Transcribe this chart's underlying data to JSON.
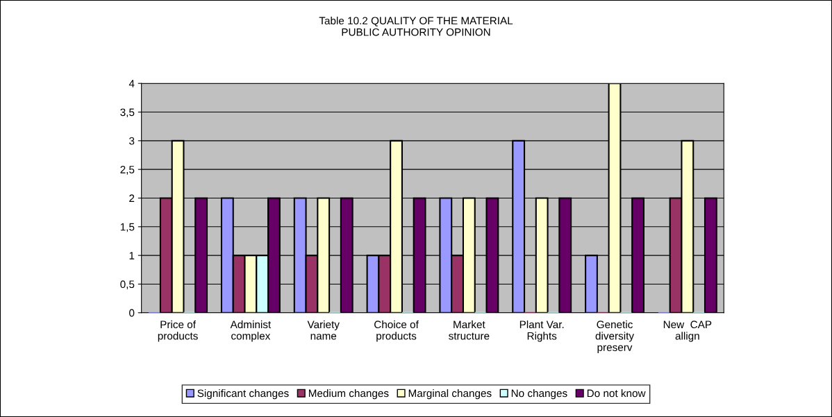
{
  "chart_data": {
    "type": "bar",
    "title": "Table 10.2 QUALITY OF THE MATERIAL\nPUBLIC AUTHORITY OPINION",
    "categories": [
      "Price of\nproducts",
      "Administ\ncomplex",
      "Variety\nname",
      "Choice of\nproducts",
      "Market\nstructure",
      "Plant Var.\nRights",
      "Genetic\ndiversity\npreserv",
      "New  CAP\nallign"
    ],
    "series": [
      {
        "name": "Significant changes",
        "color": "#9999ff",
        "values": [
          0,
          2,
          2,
          1,
          2,
          3,
          1,
          0
        ]
      },
      {
        "name": "Medium changes",
        "color": "#993366",
        "values": [
          2,
          1,
          1,
          1,
          1,
          0,
          0,
          2
        ]
      },
      {
        "name": "Marginal changes",
        "color": "#ffffcc",
        "values": [
          3,
          1,
          2,
          3,
          2,
          2,
          4,
          3
        ]
      },
      {
        "name": "No changes",
        "color": "#ccffff",
        "values": [
          0,
          1,
          0,
          0,
          0,
          0,
          0,
          0
        ]
      },
      {
        "name": "Do not know",
        "color": "#660066",
        "values": [
          2,
          2,
          2,
          2,
          2,
          2,
          2,
          2
        ]
      }
    ],
    "ylim": [
      0,
      4
    ],
    "yticks": [
      0,
      {
        "value": 0.5,
        "label": "0,5"
      },
      1,
      {
        "value": 1.5,
        "label": "1,5"
      },
      2,
      {
        "value": 2.5,
        "label": "2,5"
      },
      3,
      {
        "value": 3.5,
        "label": "3,5"
      },
      4
    ],
    "grid": "y",
    "legend": "bottom"
  }
}
